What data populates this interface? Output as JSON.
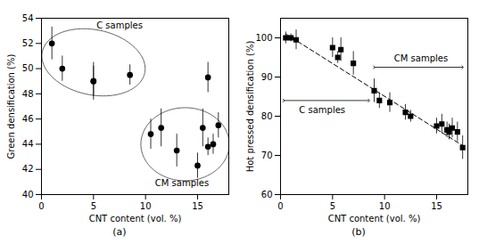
{
  "chart_data": [
    {
      "type": "scatter",
      "marker": "circle",
      "color": "#000000",
      "xlabel": "CNT content (vol. %)",
      "ylabel": "Green densification (%)",
      "caption": "(a)",
      "xlim": [
        0,
        18
      ],
      "ylim": [
        40,
        54
      ],
      "xticks": [
        0,
        5,
        10,
        15
      ],
      "yticks": [
        40,
        42,
        44,
        46,
        48,
        50,
        52,
        54
      ],
      "grid": false,
      "x": [
        1,
        2,
        5,
        5,
        8.5,
        16,
        10.5,
        11.5,
        13,
        15,
        15.5,
        16.0,
        16.5,
        17.0
      ],
      "values": [
        52.0,
        50.0,
        49.0,
        49.0,
        49.5,
        49.3,
        44.8,
        45.3,
        43.5,
        42.3,
        45.3,
        43.8,
        44.0,
        45.5
      ],
      "yerr": [
        1.3,
        1.0,
        1.2,
        1.5,
        0.8,
        1.2,
        1.2,
        1.5,
        1.3,
        1.0,
        1.5,
        0.7,
        0.8,
        1.0
      ],
      "ellipses": [
        {
          "cx": 5.0,
          "cy": 50.5,
          "w": 10.0,
          "h": 5.2,
          "angle": -8,
          "color": "#666666",
          "label": "C samples",
          "label_x": 7.5,
          "label_y": 53.2
        },
        {
          "cx": 13.8,
          "cy": 44.0,
          "w": 8.5,
          "h": 5.8,
          "angle": 0,
          "color": "#666666",
          "label": "CM samples",
          "label_x": 13.5,
          "label_y": 41.2
        }
      ]
    },
    {
      "type": "scatter",
      "marker": "square",
      "color": "#000000",
      "xlabel": "CNT content (vol. %)",
      "ylabel": "Hot pressed densification (%)",
      "caption": "(b)",
      "xlim": [
        0,
        18
      ],
      "ylim": [
        60,
        105
      ],
      "xticks": [
        0,
        5,
        10,
        15
      ],
      "yticks": [
        60,
        70,
        80,
        90,
        100
      ],
      "grid": false,
      "x": [
        0.5,
        1.0,
        1.5,
        5.0,
        5.5,
        5.8,
        7.0,
        9.0,
        9.5,
        10.5,
        12.0,
        12.5,
        15.0,
        15.5,
        16.0,
        16.2,
        16.5,
        17.0,
        17.5
      ],
      "values": [
        100.0,
        100.0,
        99.5,
        97.5,
        95.0,
        97.0,
        93.5,
        86.5,
        84.0,
        83.5,
        81.0,
        80.0,
        77.5,
        78.0,
        76.5,
        76.0,
        77.0,
        76.0,
        72.0
      ],
      "yerr": [
        1.5,
        1.0,
        2.5,
        2.5,
        1.5,
        3.0,
        3.0,
        3.0,
        2.0,
        2.5,
        2.0,
        1.5,
        2.0,
        2.5,
        2.0,
        2.0,
        2.5,
        2.5,
        3.0
      ],
      "trend": {
        "x": [
          0.5,
          17.5
        ],
        "values": [
          101.0,
          72.5
        ],
        "line_style": "dashed",
        "color": "#000000"
      },
      "arrows": [
        {
          "x1": 0.3,
          "x2": 8.5,
          "y": 84.0,
          "label": "C samples",
          "label_x": 4.0,
          "label_y": 82.5
        },
        {
          "x1": 9.0,
          "x2": 17.5,
          "y": 92.5,
          "label": "CM samples",
          "label_x": 13.5,
          "label_y": 94.0
        }
      ]
    }
  ]
}
